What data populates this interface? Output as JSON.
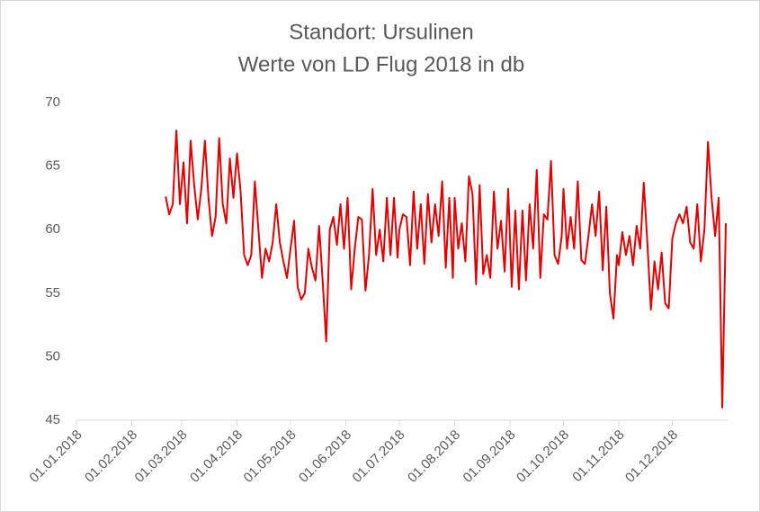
{
  "chart_data": {
    "type": "line",
    "title": "Standort: Ursulinen",
    "subtitle": "Werte von LD Flug 2018 in db",
    "x": [
      "20.02.2018",
      "22.02.2018",
      "24.02.2018",
      "26.02.2018",
      "28.02.2018",
      "02.03.2018",
      "04.03.2018",
      "06.03.2018",
      "08.03.2018",
      "10.03.2018",
      "12.03.2018",
      "14.03.2018",
      "16.03.2018",
      "18.03.2018",
      "20.03.2018",
      "22.03.2018",
      "24.03.2018",
      "26.03.2018",
      "28.03.2018",
      "30.03.2018",
      "01.04.2018",
      "03.04.2018",
      "05.04.2018",
      "07.04.2018",
      "09.04.2018",
      "11.04.2018",
      "13.04.2018",
      "15.04.2018",
      "17.04.2018",
      "19.04.2018",
      "21.04.2018",
      "23.04.2018",
      "25.04.2018",
      "27.04.2018",
      "29.04.2018",
      "01.05.2018",
      "03.05.2018",
      "05.05.2018",
      "07.05.2018",
      "09.05.2018",
      "11.05.2018",
      "13.05.2018",
      "15.05.2018",
      "17.05.2018",
      "19.05.2018",
      "21.05.2018",
      "23.05.2018",
      "25.05.2018",
      "27.05.2018",
      "29.05.2018",
      "31.05.2018",
      "02.06.2018",
      "04.06.2018",
      "06.06.2018",
      "08.06.2018",
      "10.06.2018",
      "12.06.2018",
      "14.06.2018",
      "16.06.2018",
      "18.06.2018",
      "20.06.2018",
      "22.06.2018",
      "24.06.2018",
      "26.06.2018",
      "28.06.2018",
      "30.06.2018",
      "01.07.2018",
      "03.07.2018",
      "05.07.2018",
      "07.07.2018",
      "09.07.2018",
      "11.07.2018",
      "13.07.2018",
      "15.07.2018",
      "17.07.2018",
      "19.07.2018",
      "21.07.2018",
      "23.07.2018",
      "25.07.2018",
      "27.07.2018",
      "29.07.2018",
      "31.07.2018",
      "01.08.2018",
      "03.08.2018",
      "05.08.2018",
      "07.08.2018",
      "09.08.2018",
      "11.08.2018",
      "13.08.2018",
      "15.08.2018",
      "17.08.2018",
      "19.08.2018",
      "21.08.2018",
      "23.08.2018",
      "25.08.2018",
      "27.08.2018",
      "29.08.2018",
      "31.08.2018",
      "02.09.2018",
      "04.09.2018",
      "06.09.2018",
      "08.09.2018",
      "10.09.2018",
      "12.09.2018",
      "14.09.2018",
      "16.09.2018",
      "18.09.2018",
      "20.09.2018",
      "22.09.2018",
      "24.09.2018",
      "26.09.2018",
      "28.09.2018",
      "30.09.2018",
      "01.10.2018",
      "03.10.2018",
      "05.10.2018",
      "07.10.2018",
      "09.10.2018",
      "11.10.2018",
      "13.10.2018",
      "15.10.2018",
      "17.10.2018",
      "19.10.2018",
      "21.10.2018",
      "23.10.2018",
      "25.10.2018",
      "27.10.2018",
      "29.10.2018",
      "31.10.2018",
      "01.11.2018",
      "03.11.2018",
      "05.11.2018",
      "07.11.2018",
      "09.11.2018",
      "11.11.2018",
      "13.11.2018",
      "15.11.2018",
      "17.11.2018",
      "19.11.2018",
      "21.11.2018",
      "23.11.2018",
      "25.11.2018",
      "27.11.2018",
      "29.11.2018",
      "01.12.2018",
      "03.12.2018",
      "05.12.2018",
      "07.12.2018",
      "09.12.2018",
      "11.12.2018",
      "13.12.2018",
      "15.12.2018",
      "17.12.2018",
      "19.12.2018",
      "21.12.2018",
      "23.12.2018",
      "25.12.2018",
      "27.12.2018",
      "29.12.2018",
      "31.12.2018"
    ],
    "series": [
      {
        "color": "#e60000",
        "values": [
          62.6,
          61.2,
          62,
          67.8,
          62,
          65.3,
          60.5,
          67,
          63.5,
          60.8,
          63.2,
          67,
          62.5,
          59.5,
          61,
          67.2,
          62,
          60.5,
          65.6,
          62.5,
          66,
          63,
          58,
          57.2,
          58,
          63.8,
          60,
          56.2,
          58.5,
          57.5,
          59,
          62,
          59,
          57.5,
          56.2,
          58.5,
          60.7,
          55.5,
          54.5,
          55,
          58.5,
          57,
          56,
          60.3,
          56,
          51.2,
          60,
          61,
          58.8,
          62,
          58.5,
          62.5,
          55.3,
          58.5,
          61,
          60.8,
          55.2,
          58,
          63.2,
          58,
          60,
          57.5,
          62.5,
          58,
          62.5,
          57.8,
          60,
          61.2,
          61,
          57.2,
          63,
          58.5,
          62,
          57.3,
          62.8,
          59,
          62,
          59.5,
          63.8,
          57,
          62.5,
          56.2,
          62.5,
          58.5,
          60.5,
          57.5,
          64.2,
          62.8,
          55.7,
          63.5,
          56.5,
          58,
          56.2,
          63,
          58.5,
          60.7,
          56.7,
          63.2,
          55.5,
          61.5,
          55.3,
          61.5,
          56,
          62,
          58.5,
          64.7,
          56.2,
          61.2,
          60.8,
          65.4,
          58,
          57.3,
          59.5,
          63.2,
          58.5,
          61,
          58.5,
          63.8,
          57.6,
          57.3,
          59.5,
          62,
          59.5,
          63,
          56.8,
          61.8,
          55,
          53,
          58,
          57.2,
          59.8,
          58,
          59.5,
          57.2,
          60.3,
          58.5,
          63.7,
          59,
          53.7,
          57.5,
          55.3,
          58.2,
          54.2,
          53.8,
          59.3,
          60.5,
          61.2,
          60.5,
          61.8,
          59,
          58.5,
          62,
          57.5,
          60,
          66.9,
          62.5,
          59.5,
          62.5,
          46,
          60.5
        ]
      }
    ],
    "xlim": [
      "01.01.2018",
      "01.01.2019"
    ],
    "xticks": [
      "01.01.2018",
      "01.02.2018",
      "01.03.2018",
      "01.04.2018",
      "01.05.2018",
      "01.06.2018",
      "01.07.2018",
      "01.08.2018",
      "01.09.2018",
      "01.10.2018",
      "01.11.2018",
      "01.12.2018"
    ],
    "ylim": [
      45,
      70
    ],
    "yticks": [
      45,
      50,
      55,
      60,
      65,
      70
    ],
    "grid": false
  }
}
